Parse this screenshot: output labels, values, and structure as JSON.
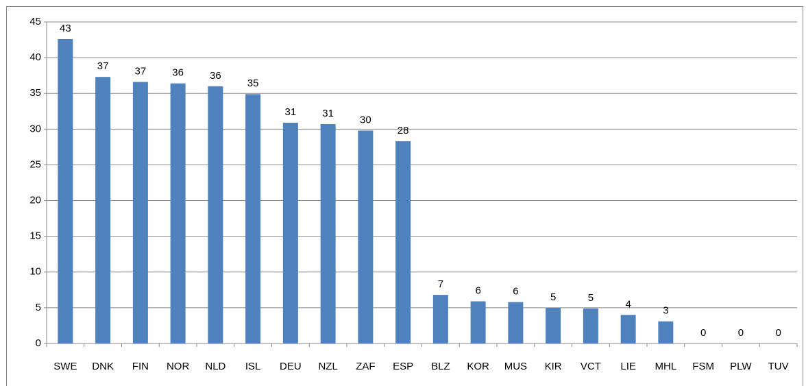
{
  "chart_data": {
    "type": "bar",
    "categories": [
      "SWE",
      "DNK",
      "FIN",
      "NOR",
      "NLD",
      "ISL",
      "DEU",
      "NZL",
      "ZAF",
      "ESP",
      "BLZ",
      "KOR",
      "MUS",
      "KIR",
      "VCT",
      "LIE",
      "MHL",
      "FSM",
      "PLW",
      "TUV"
    ],
    "values": [
      42.6,
      37.3,
      36.6,
      36.4,
      36.0,
      34.9,
      30.9,
      30.7,
      29.8,
      28.3,
      6.8,
      5.9,
      5.8,
      5.0,
      4.9,
      4.0,
      3.1,
      0,
      0,
      0
    ],
    "value_labels": [
      "43",
      "37",
      "37",
      "36",
      "36",
      "35",
      "31",
      "31",
      "30",
      "28",
      "7",
      "6",
      "6",
      "5",
      "5",
      "4",
      "3",
      "0",
      "0",
      "0"
    ],
    "color": "#4f81bd",
    "ylim": [
      0,
      45
    ],
    "yticks": [
      0,
      5,
      10,
      15,
      20,
      25,
      30,
      35,
      40,
      45
    ],
    "grid": true
  }
}
